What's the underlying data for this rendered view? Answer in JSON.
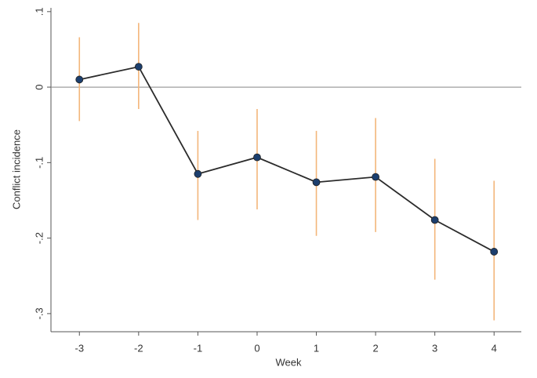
{
  "chart_data": {
    "type": "line",
    "x_label": "Week",
    "y_label": "Conflict incidence",
    "x": [
      -3,
      -2,
      -1,
      0,
      1,
      2,
      3,
      4
    ],
    "series": [
      {
        "values": [
          0.01,
          0.027,
          -0.115,
          -0.093,
          -0.126,
          -0.119,
          -0.176,
          -0.218
        ],
        "color": "#2b2b2b",
        "marker_color": "#1c3f6e",
        "lower": [
          -0.045,
          -0.029,
          -0.176,
          -0.162,
          -0.197,
          -0.192,
          -0.255,
          -0.309
        ],
        "upper": [
          0.066,
          0.085,
          -0.058,
          -0.029,
          -0.058,
          -0.041,
          -0.095,
          -0.124
        ],
        "error_color": "#f3b67a"
      }
    ],
    "reference_line": 0,
    "xlim": [
      -3.48,
      4.46
    ],
    "xticks": [
      -3,
      -2,
      -1,
      0,
      1,
      2,
      3,
      4
    ],
    "ylim": [
      -0.324,
      0.105
    ],
    "yticks": [
      {
        "value": 0.1,
        "label": ".1"
      },
      0,
      {
        "value": -0.1,
        "label": "-.1"
      },
      {
        "value": -0.2,
        "label": "-.2"
      },
      {
        "value": -0.3,
        "label": "-.3"
      }
    ],
    "grid": false
  }
}
